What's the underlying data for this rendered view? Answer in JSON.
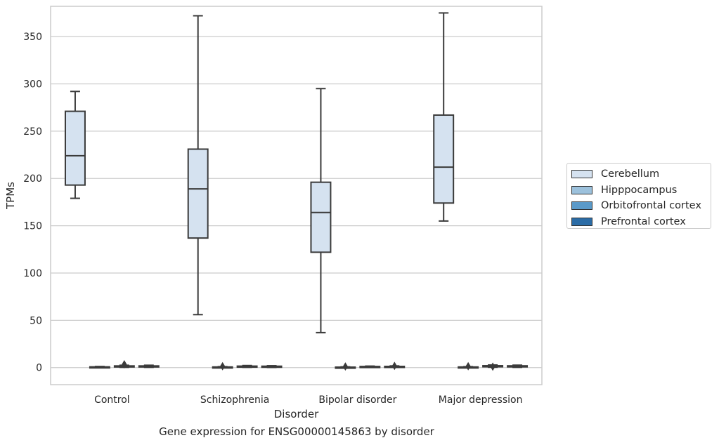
{
  "chart_data": {
    "type": "box",
    "caption": "Gene expression for ENSG00000145863 by disorder",
    "xlabel": "Disorder",
    "ylabel": "TPMs",
    "ylim": [
      -18,
      382
    ],
    "yticks": [
      0,
      50,
      100,
      150,
      200,
      250,
      300,
      350
    ],
    "grid": true,
    "legend_position": "right",
    "categories": [
      "Control",
      "Schizophrenia",
      "Bipolar disorder",
      "Major depression"
    ],
    "series": [
      {
        "name": "Cerebellum",
        "color": "#d5e2f0",
        "boxes": [
          {
            "min": 179,
            "q1": 193,
            "median": 224,
            "q3": 271,
            "max": 292,
            "outliers": []
          },
          {
            "min": 56,
            "q1": 137,
            "median": 189,
            "q3": 231,
            "max": 372,
            "outliers": []
          },
          {
            "min": 37,
            "q1": 122,
            "median": 164,
            "q3": 196,
            "max": 295,
            "outliers": []
          },
          {
            "min": 155,
            "q1": 174,
            "median": 212,
            "q3": 267,
            "max": 375,
            "outliers": []
          }
        ]
      },
      {
        "name": "Hipppocampus",
        "color": "#9cc1dc",
        "boxes": [
          {
            "min": 0,
            "q1": 0.2,
            "median": 0.5,
            "q3": 0.8,
            "max": 1.2,
            "outliers": []
          },
          {
            "min": 0,
            "q1": 0.2,
            "median": 0.4,
            "q3": 0.7,
            "max": 1.0,
            "outliers": [
              1.5
            ]
          },
          {
            "min": 0,
            "q1": 0.1,
            "median": 0.3,
            "q3": 0.5,
            "max": 0.8,
            "outliers": [
              1.2
            ]
          },
          {
            "min": 0,
            "q1": 0.2,
            "median": 0.4,
            "q3": 0.7,
            "max": 1.0,
            "outliers": [
              1.5
            ]
          }
        ]
      },
      {
        "name": "Orbitofrontal cortex",
        "color": "#5b9ac9",
        "boxes": [
          {
            "min": 0.3,
            "q1": 0.8,
            "median": 1.2,
            "q3": 1.8,
            "max": 2.5,
            "outliers": [
              3.5
            ]
          },
          {
            "min": 0.3,
            "q1": 0.7,
            "median": 1.1,
            "q3": 1.6,
            "max": 2.2,
            "outliers": []
          },
          {
            "min": 0.2,
            "q1": 0.5,
            "median": 0.8,
            "q3": 1.2,
            "max": 1.6,
            "outliers": []
          },
          {
            "min": 0.4,
            "q1": 0.9,
            "median": 1.4,
            "q3": 2.0,
            "max": 2.8,
            "outliers": [
              1.0
            ]
          }
        ]
      },
      {
        "name": "Prefrontal cortex",
        "color": "#2b6ca6",
        "boxes": [
          {
            "min": 0.3,
            "q1": 0.8,
            "median": 1.2,
            "q3": 1.8,
            "max": 2.5,
            "outliers": []
          },
          {
            "min": 0.2,
            "q1": 0.6,
            "median": 1.0,
            "q3": 1.5,
            "max": 2.0,
            "outliers": []
          },
          {
            "min": 0.2,
            "q1": 0.5,
            "median": 0.9,
            "q3": 1.3,
            "max": 1.8,
            "outliers": [
              1.8
            ]
          },
          {
            "min": 0.3,
            "q1": 0.8,
            "median": 1.3,
            "q3": 1.9,
            "max": 2.6,
            "outliers": []
          }
        ]
      }
    ]
  }
}
